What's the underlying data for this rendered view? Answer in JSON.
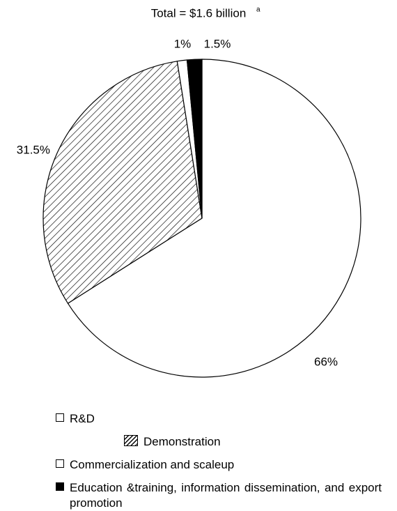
{
  "chart_data": {
    "type": "pie",
    "title": "Total = $1.6 billion",
    "title_footnote_mark": "a",
    "categories": [
      "R&D",
      "Demonstration",
      "Commercialization and scaleup",
      "Education &training, information dissemination, and export promotion"
    ],
    "values": [
      66,
      31.5,
      1,
      1.5
    ],
    "value_labels": [
      "66%",
      "31.5%",
      "1%",
      "1.5%"
    ],
    "fills": [
      "#ffffff",
      "hatch",
      "#ffffff",
      "#000000"
    ]
  }
}
